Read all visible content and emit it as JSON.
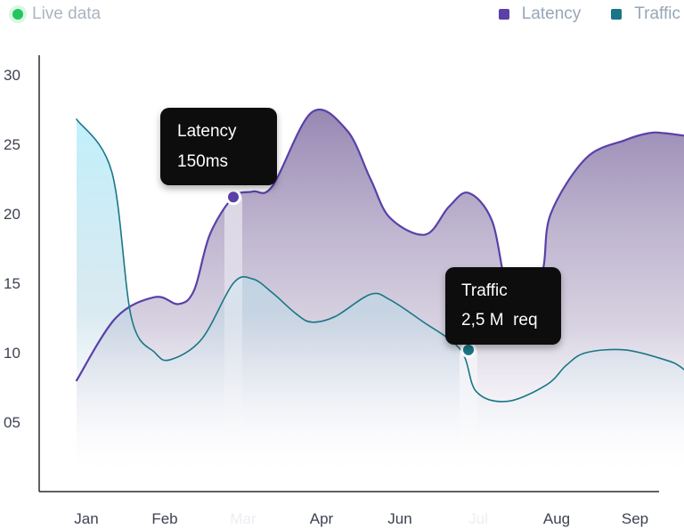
{
  "header": {
    "live_label": "Live data"
  },
  "legend": [
    {
      "label": "Latency",
      "color": "#5a40a8"
    },
    {
      "label": "Traffic",
      "color": "#1a7686"
    }
  ],
  "chart_data": {
    "type": "area",
    "categories": [
      "Jan",
      "Feb",
      "Mar",
      "Apr",
      "Jun",
      "Jul",
      "Aug",
      "Sep"
    ],
    "faded_categories": [
      "Mar",
      "Jul"
    ],
    "y_ticks": [
      "30",
      "25",
      "20",
      "15",
      "10",
      "05"
    ],
    "ylim": [
      0,
      30
    ],
    "series": [
      {
        "name": "Latency",
        "color": "#5a40a8",
        "x": [
          0,
          0.5,
          1.0,
          1.3,
          1.5,
          1.7,
          2.0,
          2.25,
          2.5,
          3.0,
          3.45,
          3.75,
          4.0,
          4.45,
          4.75,
          5.0,
          5.3,
          5.5,
          5.75,
          5.95,
          6.05,
          6.5,
          7.0,
          7.3,
          7.5,
          7.9
        ],
        "values": [
          8,
          12.5,
          14,
          13.5,
          14.5,
          18.5,
          21.2,
          21.6,
          22,
          27.3,
          26,
          22.5,
          19.7,
          18.5,
          20.5,
          21.5,
          19.5,
          14.5,
          14,
          16,
          20,
          24,
          25.3,
          25.8,
          25.8,
          25.5
        ]
      },
      {
        "name": "Traffic",
        "color": "#1a7686",
        "x": [
          0,
          0.45,
          0.7,
          1.0,
          1.2,
          1.6,
          2.0,
          2.25,
          2.5,
          2.8,
          3.0,
          3.3,
          3.75,
          4.0,
          4.4,
          4.9,
          5.1,
          5.5,
          6.0,
          6.25,
          6.5,
          7.0,
          7.5,
          7.7,
          7.9
        ],
        "values": [
          26.8,
          23,
          12.5,
          10,
          9.5,
          11,
          15,
          15.3,
          14.3,
          12.8,
          12.2,
          12.6,
          14.2,
          13.8,
          12.3,
          10.2,
          7.2,
          6.5,
          7.7,
          9.1,
          10,
          10.2,
          9.5,
          9,
          8
        ]
      }
    ],
    "markers": [
      {
        "series": "Latency",
        "x": 2.0,
        "value": 21.2
      },
      {
        "series": "Traffic",
        "x": 5.0,
        "value": 10.2
      }
    ],
    "tooltips": [
      {
        "title": "Latency",
        "value": "150ms"
      },
      {
        "title": "Traffic",
        "value": "2,5 M  req"
      }
    ]
  }
}
